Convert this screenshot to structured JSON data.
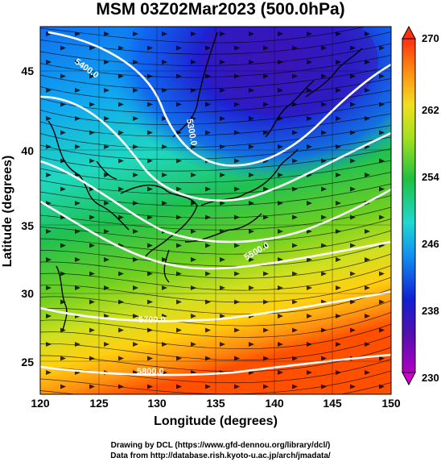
{
  "title": "MSM 03Z02Mar2023 (500.0hPa)",
  "xaxis": {
    "label": "Longitude (degrees)",
    "ticks": [
      "120",
      "125",
      "130",
      "135",
      "140",
      "145",
      "150"
    ]
  },
  "yaxis": {
    "label": "Latitude  (degrees)",
    "ticks": [
      "25",
      "30",
      "35",
      "40",
      "45"
    ]
  },
  "colorbar": {
    "labels": [
      "230",
      "238",
      "246",
      "254",
      "262",
      "270"
    ]
  },
  "contour_labels": [
    "5400.0",
    "5300.0",
    "5500.0",
    "5700.0",
    "5800.0"
  ],
  "credits": {
    "line1": "Drawing by DCL (https://www.gfd-dennou.org/library/dcl/)",
    "line2": "Data from http://database.rish.kyoto-u.ac.jp/arch/jmadata/"
  },
  "colors": {
    "cold": "#3010c0",
    "mid": "#20c040",
    "warm": "#ff5000",
    "contour": "#ffffff"
  }
}
